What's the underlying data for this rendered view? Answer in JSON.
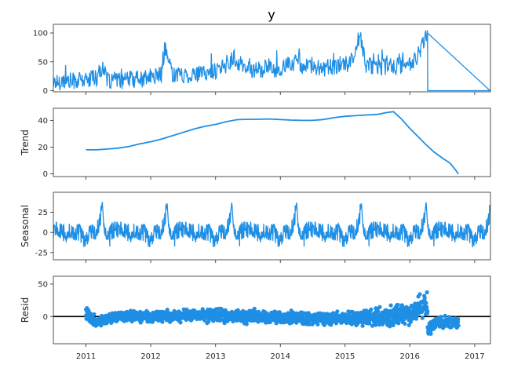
{
  "chart_data": {
    "type": "line",
    "title": "y",
    "series_color": "#1f8fe5",
    "x_range": [
      "2010-07-01",
      "2017-03-31"
    ],
    "x_ticks": [
      {
        "date": "2011-01-01",
        "label": "2011"
      },
      {
        "date": "2012-01-01",
        "label": "2012"
      },
      {
        "date": "2013-01-01",
        "label": "2013"
      },
      {
        "date": "2014-01-01",
        "label": "2014"
      },
      {
        "date": "2015-01-01",
        "label": "2015"
      },
      {
        "date": "2016-01-01",
        "label": "2016"
      },
      {
        "date": "2017-01-01",
        "label": "2017"
      }
    ],
    "panels": [
      {
        "key": "observed",
        "ylabel": "",
        "style": "line",
        "ylim": [
          -2,
          115
        ],
        "yticks": [
          0,
          50,
          100
        ],
        "x": [
          "2010-07-01",
          "2010-09-01",
          "2010-11-01",
          "2011-01-01",
          "2011-03-01",
          "2011-04-01",
          "2011-05-01",
          "2011-07-01",
          "2011-09-01",
          "2011-11-01",
          "2012-01-01",
          "2012-03-01",
          "2012-03-25",
          "2012-05-01",
          "2012-07-01",
          "2012-09-01",
          "2012-11-01",
          "2013-01-01",
          "2013-03-01",
          "2013-04-15",
          "2013-06-01",
          "2013-08-01",
          "2013-10-01",
          "2013-12-01",
          "2014-02-01",
          "2014-04-01",
          "2014-06-01",
          "2014-08-01",
          "2014-10-01",
          "2014-12-01",
          "2015-02-01",
          "2015-03-25",
          "2015-05-01",
          "2015-07-01",
          "2015-09-01",
          "2015-11-01",
          "2016-01-01",
          "2016-02-15",
          "2016-04-01",
          "2016-04-10",
          "2016-04-11",
          "2017-03-31"
        ],
        "y": [
          15,
          16,
          17,
          18,
          22,
          38,
          18,
          16,
          20,
          19,
          24,
          28,
          68,
          30,
          27,
          28,
          30,
          35,
          42,
          58,
          40,
          36,
          38,
          36,
          42,
          52,
          40,
          38,
          40,
          42,
          48,
          95,
          44,
          40,
          42,
          43,
          48,
          55,
          100,
          100,
          0,
          0
        ]
      },
      {
        "key": "trend",
        "ylabel": "Trend",
        "style": "line",
        "ylim": [
          -2,
          49
        ],
        "yticks": [
          0,
          20,
          40
        ],
        "x": [
          "2011-01-01",
          "2011-03-01",
          "2011-05-01",
          "2011-07-01",
          "2011-09-01",
          "2011-11-01",
          "2012-01-01",
          "2012-03-01",
          "2012-05-01",
          "2012-07-01",
          "2012-09-01",
          "2012-11-01",
          "2013-01-01",
          "2013-03-01",
          "2013-05-01",
          "2013-07-01",
          "2013-09-01",
          "2013-11-01",
          "2014-01-01",
          "2014-03-01",
          "2014-05-01",
          "2014-07-01",
          "2014-09-01",
          "2014-11-01",
          "2015-01-01",
          "2015-03-01",
          "2015-05-01",
          "2015-07-01",
          "2015-09-01",
          "2015-10-01",
          "2015-11-15",
          "2016-01-01",
          "2016-02-15",
          "2016-04-01",
          "2016-05-15",
          "2016-07-01",
          "2016-08-15",
          "2016-09-15",
          "2016-10-01"
        ],
        "y": [
          18,
          18,
          18.6,
          19.2,
          20.5,
          22.5,
          24,
          26,
          28.5,
          31,
          33.5,
          35.5,
          37,
          39,
          40.5,
          40.8,
          40.8,
          41,
          40.6,
          40.2,
          40,
          40,
          40.6,
          42,
          43,
          43.5,
          44,
          44.4,
          46,
          46.5,
          41,
          34,
          28,
          22,
          16.5,
          12,
          8,
          3,
          0
        ]
      },
      {
        "key": "seasonal",
        "ylabel": "Seasonal",
        "style": "line",
        "ylim": [
          -34,
          50
        ],
        "yticks": [
          -25,
          0,
          25
        ],
        "period_days": 365.25,
        "profile_day": [
          0,
          60,
          80,
          92,
          100,
          115,
          170,
          240,
          330,
          360,
          365.25
        ],
        "profile_val": [
          -5,
          3,
          15,
          38,
          10,
          -2,
          5,
          0,
          0,
          -10,
          -5
        ]
      },
      {
        "key": "resid",
        "ylabel": "Resid",
        "style": "scatter",
        "ylim": [
          -42,
          62
        ],
        "yticks": [
          0,
          50
        ],
        "zero_line": true,
        "range": [
          "2011-01-01",
          "2016-10-01"
        ],
        "anchor_dates": [
          "2011-01-01",
          "2011-03-01",
          "2011-07-01",
          "2012-01-01",
          "2013-01-01",
          "2014-01-01",
          "2015-01-01",
          "2015-09-01",
          "2016-01-01",
          "2016-03-15",
          "2016-04-10",
          "2016-04-11",
          "2016-06-01",
          "2016-10-01"
        ],
        "anchor_center": [
          5,
          -8,
          0,
          0,
          2,
          -2,
          -3,
          0,
          5,
          15,
          20,
          -20,
          -10,
          -8
        ],
        "anchor_spread": [
          10,
          8,
          8,
          8,
          10,
          10,
          10,
          15,
          15,
          20,
          20,
          12,
          10,
          8
        ]
      }
    ]
  }
}
